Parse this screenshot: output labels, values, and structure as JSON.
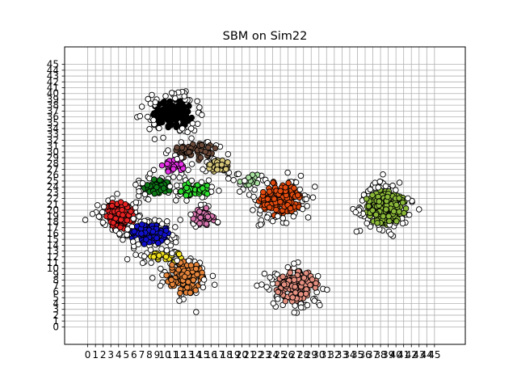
{
  "chart_data": {
    "type": "scatter",
    "title": "SBM on Sim22",
    "xlabel": "",
    "ylabel": "",
    "xlim": [
      -3,
      49
    ],
    "ylim": [
      -3,
      48
    ],
    "x_ticks": [
      0,
      1,
      2,
      3,
      4,
      5,
      6,
      7,
      8,
      9,
      10,
      11,
      12,
      13,
      14,
      15,
      16,
      17,
      18,
      19,
      20,
      21,
      22,
      23,
      24,
      25,
      26,
      27,
      28,
      29,
      30,
      31,
      32,
      33,
      34,
      35,
      36,
      37,
      38,
      39,
      40,
      41,
      42,
      43,
      44,
      45
    ],
    "y_ticks": [
      0,
      1,
      2,
      3,
      4,
      5,
      6,
      7,
      8,
      9,
      10,
      11,
      12,
      13,
      14,
      15,
      16,
      17,
      18,
      19,
      20,
      21,
      22,
      23,
      24,
      25,
      26,
      27,
      28,
      29,
      30,
      31,
      32,
      33,
      34,
      35,
      36,
      37,
      38,
      39,
      40,
      41,
      42,
      43,
      44,
      45
    ],
    "grid": true,
    "legend": "none",
    "marker": "circle",
    "marker_edge_color": "#000000",
    "unassigned_color": "#ffffff",
    "clusters": [
      {
        "color": "#000000",
        "center": [
          11.0,
          36.5
        ],
        "spread": [
          2.8,
          2.8
        ],
        "n": 180
      },
      {
        "color": "#6b4a3a",
        "center": [
          14.0,
          30.0
        ],
        "spread": [
          3.0,
          1.6
        ],
        "n": 70
      },
      {
        "color": "#e52fe5",
        "center": [
          11.0,
          27.5
        ],
        "spread": [
          1.6,
          1.4
        ],
        "n": 50
      },
      {
        "color": "#d8c87a",
        "center": [
          17.0,
          27.5
        ],
        "spread": [
          1.6,
          1.2
        ],
        "n": 35
      },
      {
        "color": "#0d7a18",
        "center": [
          9.0,
          24.0
        ],
        "spread": [
          2.0,
          1.6
        ],
        "n": 70
      },
      {
        "color": "#2ee02e",
        "center": [
          14.0,
          23.5
        ],
        "spread": [
          2.2,
          1.4
        ],
        "n": 70
      },
      {
        "color": "#e52121",
        "center": [
          4.0,
          19.0
        ],
        "spread": [
          2.2,
          2.6
        ],
        "n": 120
      },
      {
        "color": "#1010cc",
        "center": [
          8.0,
          16.0
        ],
        "spread": [
          3.0,
          2.0
        ],
        "n": 130
      },
      {
        "color": "#d877b0",
        "center": [
          15.0,
          19.0
        ],
        "spread": [
          1.6,
          1.8
        ],
        "n": 50
      },
      {
        "color": "#f0e020",
        "center": [
          10.0,
          12.0
        ],
        "spread": [
          2.6,
          1.0
        ],
        "n": 45
      },
      {
        "color": "#e5843a",
        "center": [
          12.5,
          8.5
        ],
        "spread": [
          2.6,
          3.0
        ],
        "n": 140
      },
      {
        "color": "#a8e0a0",
        "center": [
          21.0,
          25.5
        ],
        "spread": [
          1.6,
          1.5
        ],
        "n": 25
      },
      {
        "color": "#e24a0e",
        "center": [
          25.0,
          22.0
        ],
        "spread": [
          3.0,
          3.2
        ],
        "n": 190
      },
      {
        "color": "#e59080",
        "center": [
          27.0,
          7.0
        ],
        "spread": [
          3.0,
          3.2
        ],
        "n": 170
      },
      {
        "color": "#8ab838",
        "center": [
          38.5,
          20.5
        ],
        "spread": [
          3.0,
          3.2
        ],
        "n": 230
      }
    ]
  }
}
